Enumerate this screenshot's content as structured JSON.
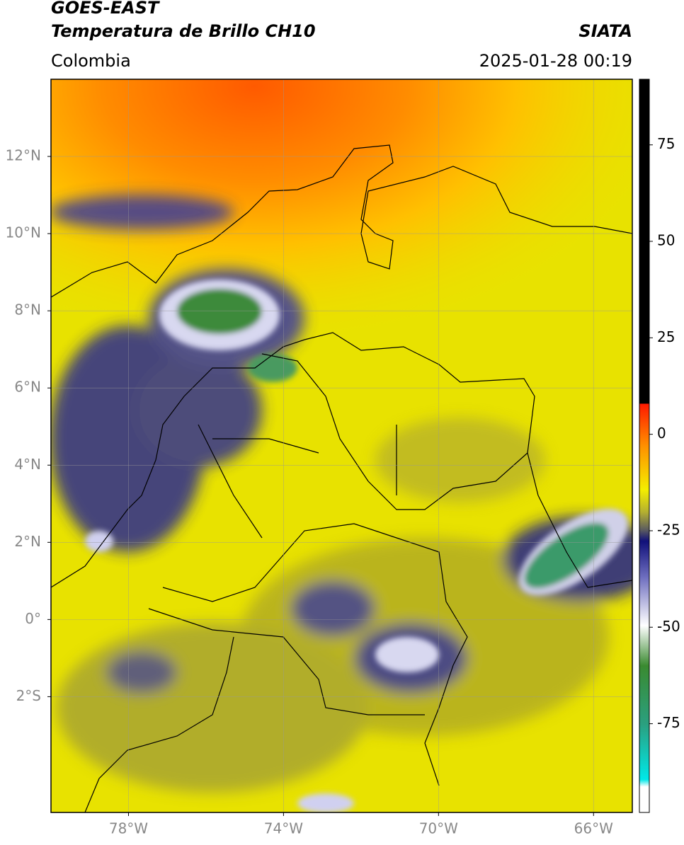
{
  "header": {
    "title_line1": "GOES-EAST",
    "title_line2": "Temperatura de Brillo CH10",
    "source": "SIATA",
    "region": "Colombia",
    "timestamp": "2025-01-28 00:19"
  },
  "map": {
    "xlim": [
      -80,
      -65
    ],
    "ylim": [
      -5,
      14
    ],
    "xticks": [
      {
        "value": -78,
        "label": "78°W"
      },
      {
        "value": -74,
        "label": "74°W"
      },
      {
        "value": -70,
        "label": "70°W"
      },
      {
        "value": -66,
        "label": "66°W"
      }
    ],
    "yticks": [
      {
        "value": 12,
        "label": "12°N"
      },
      {
        "value": 10,
        "label": "10°N"
      },
      {
        "value": 8,
        "label": "8°N"
      },
      {
        "value": 6,
        "label": "6°N"
      },
      {
        "value": 4,
        "label": "4°N"
      },
      {
        "value": 2,
        "label": "2°N"
      },
      {
        "value": 0,
        "label": "0°"
      },
      {
        "value": -2,
        "label": "2°S"
      }
    ],
    "grid": true
  },
  "colorbar": {
    "lim": [
      -98,
      92
    ],
    "ticks": [
      75,
      50,
      25,
      0,
      -25,
      -50,
      -75
    ]
  }
}
